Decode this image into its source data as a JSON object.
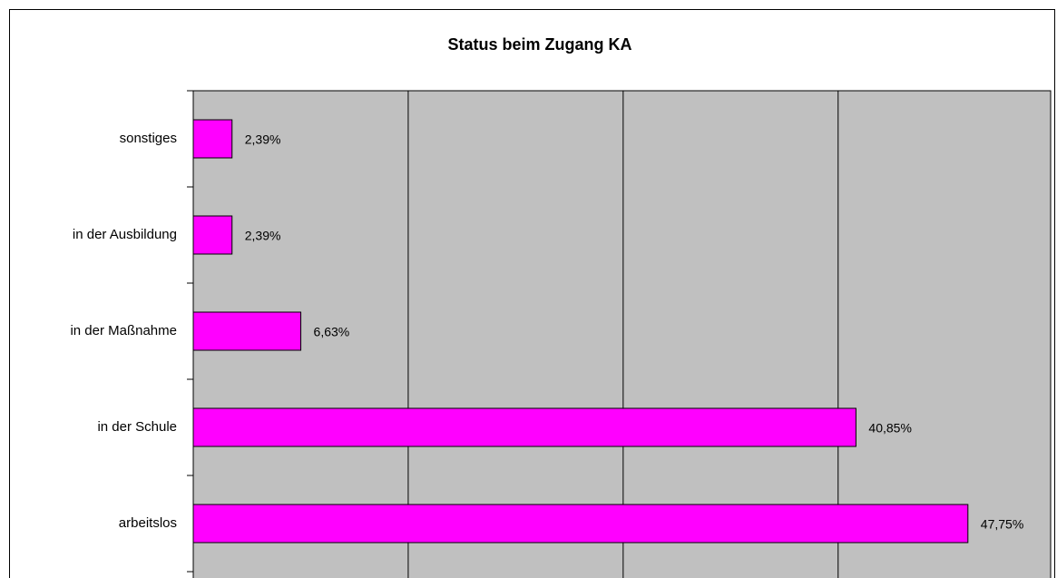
{
  "chart_data": {
    "type": "bar",
    "orientation": "horizontal",
    "title": "Status beim Zugang KA",
    "categories": [
      "sonstiges",
      "in der Ausbildung",
      "in der Maßnahme",
      "in der Schule",
      "arbeitslos"
    ],
    "values": [
      2.39,
      2.39,
      6.63,
      40.85,
      47.75
    ],
    "value_labels": [
      "2,39%",
      "2,39%",
      "6,63%",
      "40,85%",
      "47,75%"
    ],
    "color": "#ff00ff",
    "plot_background": "#c0c0c0",
    "xlim": [
      0,
      52.85
    ],
    "xticks": [
      0,
      13.25,
      26.5,
      39.75
    ],
    "grid": true
  }
}
